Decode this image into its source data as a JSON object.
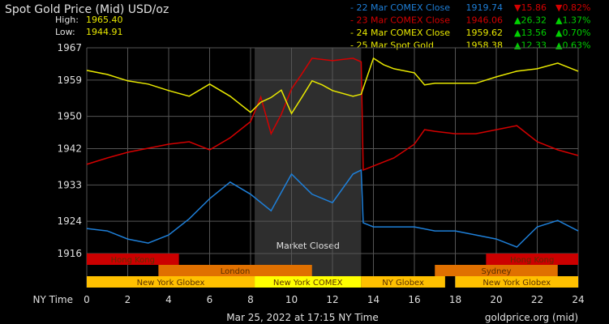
{
  "chart_data": {
    "type": "line",
    "title": "Spot Gold Price (Mid) USD/oz",
    "high_label": "High:",
    "high_value": "1965.40",
    "low_label": "Low:",
    "low_value": "1944.91",
    "xlabel": "NY Time",
    "xlim": [
      0,
      24
    ],
    "ylim": [
      1916,
      1967
    ],
    "x_ticks": [
      0,
      2,
      4,
      6,
      8,
      10,
      12,
      14,
      16,
      18,
      20,
      22,
      24
    ],
    "y_ticks": [
      1967,
      1959,
      1950,
      1942,
      1933,
      1924,
      1916
    ],
    "grid": true,
    "footer_date": "Mar 25, 2022 at 17:15 NY Time",
    "source": "goldprice.org (mid)",
    "market_closed": {
      "label": "Market Closed",
      "from": 8.2,
      "to": 13.4,
      "color": "#2e2e2e"
    },
    "legend": [
      {
        "name": "- 22 Mar COMEX Close",
        "price": "1919.74",
        "change": "15.86",
        "pct": "0.82%",
        "direction": "down",
        "color": "#1e7fd8"
      },
      {
        "name": "- 23 Mar COMEX Close",
        "price": "1946.06",
        "change": "26.32",
        "pct": "1.37%",
        "direction": "up",
        "color": "#d40000"
      },
      {
        "name": "- 24 Mar COMEX Close",
        "price": "1959.62",
        "change": "13.56",
        "pct": "0.70%",
        "direction": "up",
        "color": "#e8e800"
      },
      {
        "name": "- 25 Mar Spot Gold",
        "price": "1958.38",
        "change": "12.33",
        "pct": "0.63%",
        "direction": "up",
        "color": "#e8e800"
      }
    ],
    "up_color": "#00d000",
    "down_color": "#d40000",
    "series": [
      {
        "color": "#1e7fd8",
        "x": [
          0,
          1,
          2,
          3,
          4,
          5,
          6,
          7,
          8,
          9,
          10,
          11,
          12,
          13,
          13.4,
          13.5,
          14,
          15,
          16,
          17,
          18,
          19,
          20,
          21,
          22,
          23,
          24
        ],
        "y": [
          1922.2,
          1921.6,
          1919.6,
          1918.6,
          1920.6,
          1924.6,
          1929.6,
          1933.7,
          1930.7,
          1926.6,
          1935.7,
          1930.7,
          1928.6,
          1935.7,
          1936.7,
          1923.6,
          1922.6,
          1922.6,
          1922.6,
          1921.6,
          1921.6,
          1920.6,
          1919.6,
          1917.6,
          1922.6,
          1924.2,
          1921.6
        ]
      },
      {
        "color": "#d40000",
        "x": [
          0,
          1,
          2,
          3,
          4,
          5,
          6,
          7,
          8,
          8.5,
          9,
          9.5,
          10,
          10.5,
          11,
          12,
          13,
          13.4,
          13.5,
          14,
          15,
          16,
          16.5,
          17,
          18,
          19,
          20,
          21,
          22,
          23,
          24
        ],
        "y": [
          1938.1,
          1939.7,
          1941.1,
          1942.1,
          1943.1,
          1943.7,
          1941.7,
          1944.7,
          1948.7,
          1954.8,
          1945.7,
          1950.5,
          1956.8,
          1960.5,
          1964.4,
          1963.8,
          1964.4,
          1963.5,
          1936.7,
          1937.7,
          1939.7,
          1943.1,
          1946.7,
          1946.3,
          1945.7,
          1945.7,
          1946.7,
          1947.7,
          1943.7,
          1941.7,
          1940.3
        ]
      },
      {
        "color": "#e8e800",
        "x": [
          0,
          1,
          2,
          3,
          4,
          5,
          6,
          7,
          8,
          8.5,
          9,
          9.5,
          10,
          10.5,
          11,
          11.5,
          12,
          13,
          13.4,
          14,
          14.5,
          15,
          16,
          16.5,
          17,
          18,
          19,
          20,
          21,
          22,
          23,
          24
        ],
        "y": [
          1961.4,
          1960.4,
          1958.8,
          1958,
          1956.4,
          1955,
          1958,
          1955,
          1951,
          1953.5,
          1954.7,
          1956.5,
          1950.7,
          1954.7,
          1958.8,
          1957.8,
          1956.4,
          1955,
          1955.5,
          1964.4,
          1962.8,
          1961.8,
          1960.8,
          1957.8,
          1958.2,
          1958.2,
          1958.2,
          1959.8,
          1961.2,
          1961.8,
          1963.2,
          1961.2
        ]
      }
    ],
    "sessions": [
      {
        "label": "Hong Kong",
        "row": 0,
        "from": 0,
        "to": 4.5,
        "color": "#cc0000"
      },
      {
        "label": "Hong Kong",
        "row": 0,
        "from": 19.5,
        "to": 24,
        "color": "#cc0000"
      },
      {
        "label": "London",
        "row": 1,
        "from": 3.5,
        "to": 11,
        "color": "#e07000"
      },
      {
        "label": "Sydney",
        "row": 1,
        "from": 17,
        "to": 23,
        "color": "#e07000"
      },
      {
        "label": "New York Globex",
        "row": 2,
        "from": 0,
        "to": 8.2,
        "color": "#ffc000"
      },
      {
        "label": "New York COMEX",
        "row": 2,
        "from": 8.2,
        "to": 13.4,
        "color": "#ffff00"
      },
      {
        "label": "NY Globex",
        "row": 2,
        "from": 13.4,
        "to": 17.5,
        "color": "#ffc000"
      },
      {
        "label": "New York Globex",
        "row": 2,
        "from": 18,
        "to": 24,
        "color": "#ffc000"
      }
    ]
  }
}
